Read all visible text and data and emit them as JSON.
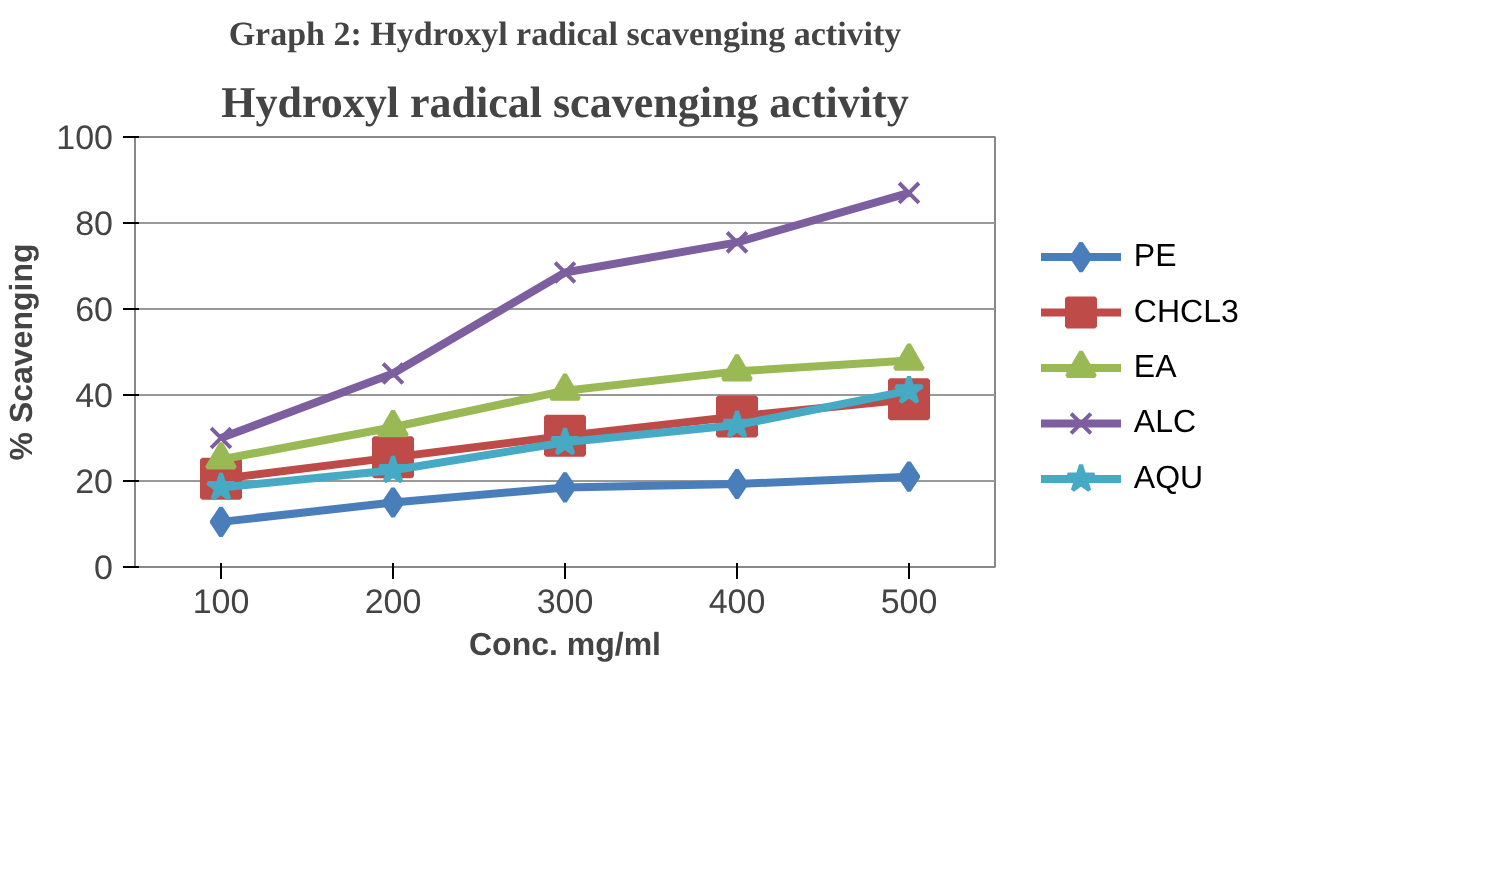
{
  "chart_data": {
    "type": "line",
    "title": "Graph 2: Hydroxyl radical scavenging activity",
    "subtitle": "Hydroxyl radical scavenging activity",
    "xlabel": "Conc. mg/ml",
    "ylabel": "% Scavenging",
    "categories": [
      "100",
      "200",
      "300",
      "400",
      "500"
    ],
    "ylim": [
      0,
      100
    ],
    "yticks": [
      0,
      20,
      40,
      60,
      80,
      100
    ],
    "grid": "y",
    "legend": "right",
    "series": [
      {
        "name": "PE",
        "color": "#4a7ebb",
        "marker": "diamond",
        "values": [
          10.5,
          15,
          18.5,
          19.3,
          21
        ]
      },
      {
        "name": "CHCL3",
        "color": "#be4b48",
        "marker": "square",
        "values": [
          20.5,
          25.5,
          30.5,
          35,
          39
        ]
      },
      {
        "name": "EA",
        "color": "#98b954",
        "marker": "triangle",
        "values": [
          25,
          32.5,
          41,
          45.5,
          48
        ]
      },
      {
        "name": "ALC",
        "color": "#7d5fa0",
        "marker": "cross",
        "values": [
          30,
          45,
          68.5,
          75.5,
          87
        ]
      },
      {
        "name": "AQU",
        "color": "#46aac5",
        "marker": "star",
        "values": [
          18.5,
          22.5,
          29,
          33,
          41
        ]
      }
    ]
  }
}
